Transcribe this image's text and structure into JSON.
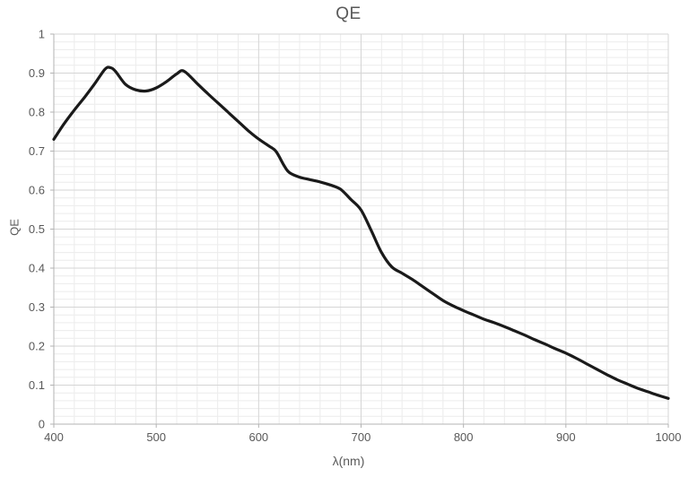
{
  "chart": {
    "title": "QE",
    "x_axis_label": "λ(nm)",
    "y_axis_label": "QE",
    "colors": {
      "text": "#595959",
      "line": "#1a1a1a",
      "axis": "#b3b3b3",
      "major_grid": "#d5d5d5",
      "minor_grid": "#ececec",
      "background": "#ffffff"
    }
  },
  "chart_data": {
    "type": "line",
    "title": "QE",
    "xlabel": "λ(nm)",
    "ylabel": "QE",
    "xlim": [
      400,
      1000
    ],
    "ylim": [
      0,
      1
    ],
    "x_ticks": [
      400,
      500,
      600,
      700,
      800,
      900,
      1000
    ],
    "x_tick_labels": [
      "400",
      "500",
      "600",
      "700",
      "800",
      "900",
      "1000"
    ],
    "y_ticks": [
      0,
      0.1,
      0.2,
      0.3,
      0.4,
      0.5,
      0.6,
      0.7,
      0.8,
      0.9,
      1
    ],
    "y_tick_labels": [
      "0",
      "0.1",
      "0.2",
      "0.3",
      "0.4",
      "0.5",
      "0.6",
      "0.7",
      "0.8",
      "0.9",
      "1"
    ],
    "x_minor_step": 20,
    "y_minor_step": 0.02,
    "grid": "major and minor gridlines on both axes",
    "legend": "none",
    "series": [
      {
        "name": "QE",
        "x": [
          400,
          410,
          420,
          430,
          440,
          450,
          455,
          460,
          470,
          480,
          490,
          500,
          510,
          520,
          527,
          540,
          550,
          560,
          570,
          580,
          590,
          600,
          610,
          617,
          625,
          630,
          640,
          650,
          660,
          670,
          680,
          690,
          700,
          710,
          720,
          730,
          740,
          750,
          760,
          770,
          780,
          790,
          800,
          810,
          820,
          830,
          840,
          850,
          860,
          870,
          880,
          890,
          900,
          910,
          920,
          930,
          940,
          950,
          960,
          970,
          980,
          990,
          1000
        ],
        "y": [
          0.73,
          0.77,
          0.805,
          0.838,
          0.873,
          0.91,
          0.914,
          0.905,
          0.871,
          0.857,
          0.854,
          0.862,
          0.878,
          0.898,
          0.905,
          0.873,
          0.848,
          0.824,
          0.8,
          0.776,
          0.752,
          0.731,
          0.713,
          0.699,
          0.662,
          0.645,
          0.633,
          0.627,
          0.621,
          0.613,
          0.602,
          0.576,
          0.549,
          0.496,
          0.44,
          0.403,
          0.387,
          0.371,
          0.353,
          0.335,
          0.317,
          0.303,
          0.291,
          0.28,
          0.269,
          0.26,
          0.25,
          0.239,
          0.228,
          0.216,
          0.205,
          0.193,
          0.182,
          0.169,
          0.155,
          0.141,
          0.127,
          0.114,
          0.103,
          0.092,
          0.083,
          0.074,
          0.066
        ]
      }
    ]
  }
}
